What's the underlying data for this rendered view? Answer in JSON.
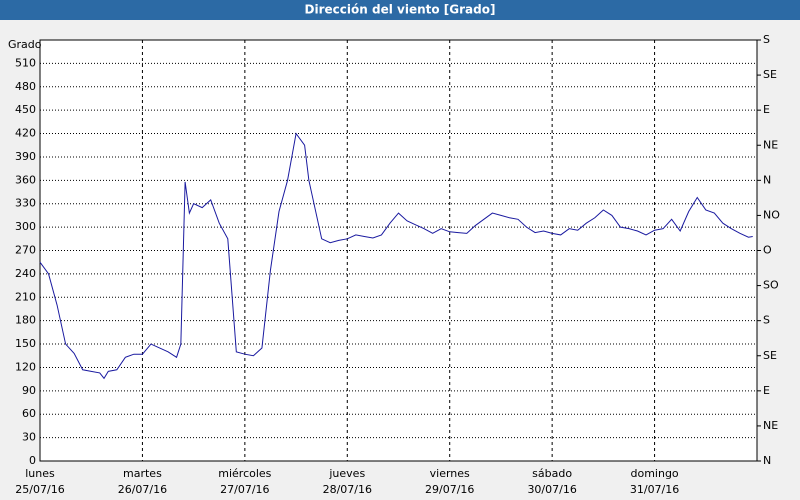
{
  "chart_data": {
    "type": "line",
    "title": "Dirección del viento [Grado]",
    "y_label": "Grado",
    "xlim": [
      0,
      168
    ],
    "ylim": [
      0,
      540
    ],
    "xticks": [
      {
        "value": 0,
        "label": "lunes",
        "date": "25/07/16"
      },
      {
        "value": 24,
        "label": "martes",
        "date": "26/07/16"
      },
      {
        "value": 48,
        "label": "miércoles",
        "date": "27/07/16"
      },
      {
        "value": 72,
        "label": "jueves",
        "date": "28/07/16"
      },
      {
        "value": 96,
        "label": "viernes",
        "date": "29/07/16"
      },
      {
        "value": 120,
        "label": "sábado",
        "date": "30/07/16"
      },
      {
        "value": 144,
        "label": "domingo",
        "date": "31/07/16"
      }
    ],
    "yticks": [
      0,
      30,
      60,
      90,
      120,
      150,
      180,
      210,
      240,
      270,
      300,
      330,
      360,
      390,
      420,
      450,
      480,
      510
    ],
    "y2lim": [
      0,
      540
    ],
    "y2ticks": [
      {
        "value": 0,
        "label": "N"
      },
      {
        "value": 45,
        "label": "NE"
      },
      {
        "value": 90,
        "label": "E"
      },
      {
        "value": 135,
        "label": "SE"
      },
      {
        "value": 180,
        "label": "S"
      },
      {
        "value": 225,
        "label": "SO"
      },
      {
        "value": 270,
        "label": "O"
      },
      {
        "value": 315,
        "label": "NO"
      },
      {
        "value": 360,
        "label": "N"
      },
      {
        "value": 405,
        "label": "NE"
      },
      {
        "value": 450,
        "label": "E"
      },
      {
        "value": 495,
        "label": "SE"
      },
      {
        "value": 540,
        "label": "S"
      }
    ],
    "grid": true,
    "series": [
      {
        "name": "Dirección del viento",
        "color": "#1a1aa0",
        "x": [
          0,
          2,
          4,
          6,
          8,
          10,
          12,
          14,
          15,
          16,
          18,
          20,
          22,
          24,
          26,
          28,
          30,
          32,
          33,
          34,
          35,
          36,
          38,
          40,
          42,
          44,
          46,
          48,
          50,
          52,
          54,
          56,
          58,
          60,
          62,
          63,
          66,
          68,
          70,
          72,
          74,
          76,
          78,
          80,
          82,
          84,
          86,
          88,
          90,
          92,
          94,
          96,
          98,
          100,
          102,
          104,
          106,
          108,
          110,
          112,
          114,
          116,
          118,
          120,
          122,
          124,
          126,
          128,
          130,
          132,
          134,
          136,
          138,
          140,
          142,
          144,
          146,
          148,
          150,
          152,
          154,
          156,
          158,
          160,
          162,
          164,
          166,
          167
        ],
        "values": [
          255,
          240,
          200,
          150,
          138,
          117,
          115,
          113,
          106,
          115,
          117,
          133,
          137,
          137,
          150,
          145,
          140,
          133,
          150,
          358,
          318,
          330,
          325,
          335,
          305,
          285,
          140,
          137,
          135,
          145,
          245,
          320,
          360,
          420,
          405,
          360,
          285,
          280,
          283,
          285,
          290,
          288,
          286,
          290,
          305,
          318,
          308,
          303,
          298,
          292,
          298,
          294,
          293,
          292,
          302,
          310,
          318,
          315,
          312,
          310,
          300,
          293,
          295,
          292,
          290,
          298,
          296,
          305,
          312,
          322,
          315,
          300,
          298,
          295,
          290,
          296,
          298,
          310,
          295,
          320,
          338,
          322,
          318,
          305,
          298,
          292,
          287,
          288
        ]
      }
    ]
  }
}
